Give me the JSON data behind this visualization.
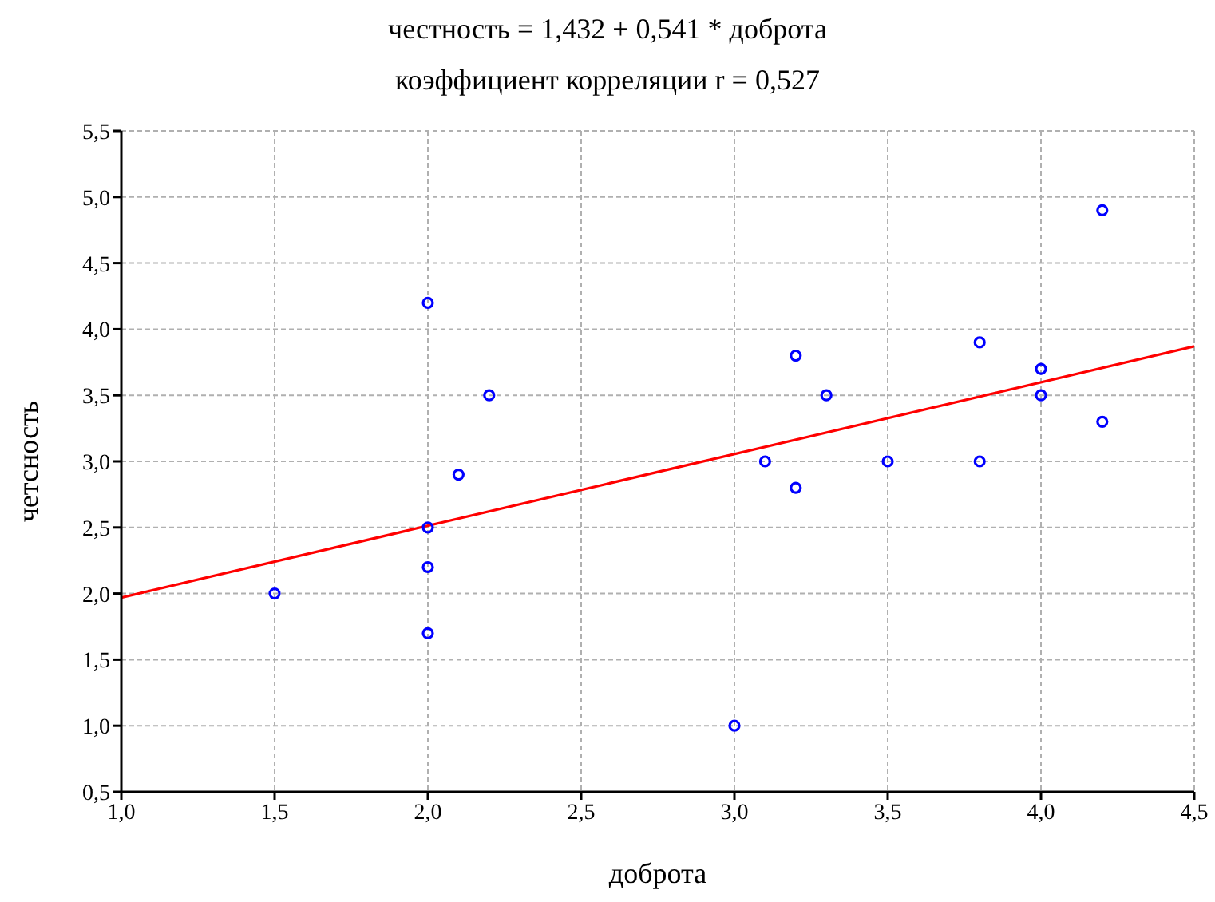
{
  "chart_data": {
    "type": "scatter",
    "title": "честность = 1,432 + 0,541 * доброта",
    "subtitle": "коэффициент корреляции r = 0,527",
    "xlabel": "доброта",
    "ylabel": "четсность",
    "grid": true,
    "series": [
      {
        "color": "#0000ff",
        "marker": "circle",
        "x": [
          1.5,
          2.0,
          2.0,
          2.0,
          2.0,
          2.1,
          2.2,
          3.0,
          3.1,
          3.2,
          3.2,
          3.3,
          3.5,
          3.8,
          3.8,
          4.0,
          4.0,
          4.2,
          4.2
        ],
        "values": [
          2.0,
          4.2,
          2.5,
          2.2,
          1.7,
          2.9,
          3.5,
          1.0,
          3.0,
          3.8,
          2.8,
          3.5,
          3.0,
          3.9,
          3.0,
          3.7,
          3.5,
          4.9,
          3.3
        ]
      },
      {
        "type": "line",
        "color": "#ff0000",
        "line_style": "solid",
        "marker": "none",
        "x": [
          1.0,
          4.5
        ],
        "values": [
          1.97,
          3.87
        ]
      }
    ],
    "xlim": [
      1.0,
      4.5
    ],
    "xticks": [
      {
        "value": 1.0,
        "label": "1,0"
      },
      {
        "value": 1.5,
        "label": "1,5"
      },
      {
        "value": 2.0,
        "label": "2,0"
      },
      {
        "value": 2.5,
        "label": "2,5"
      },
      {
        "value": 3.0,
        "label": "3,0"
      },
      {
        "value": 3.5,
        "label": "3,5"
      },
      {
        "value": 4.0,
        "label": "4,0"
      },
      {
        "value": 4.5,
        "label": "4,5"
      }
    ],
    "ylim": [
      0.5,
      5.5
    ],
    "yticks": [
      {
        "value": 0.5,
        "label": "0,5"
      },
      {
        "value": 1.0,
        "label": "1,0"
      },
      {
        "value": 1.5,
        "label": "1,5"
      },
      {
        "value": 2.0,
        "label": "2,0"
      },
      {
        "value": 2.5,
        "label": "2,5"
      },
      {
        "value": 3.0,
        "label": "3,0"
      },
      {
        "value": 3.5,
        "label": "3,5"
      },
      {
        "value": 4.0,
        "label": "4,0"
      },
      {
        "value": 4.5,
        "label": "4,5"
      },
      {
        "value": 5.0,
        "label": "5,0"
      },
      {
        "value": 5.5,
        "label": "5,5"
      }
    ]
  }
}
